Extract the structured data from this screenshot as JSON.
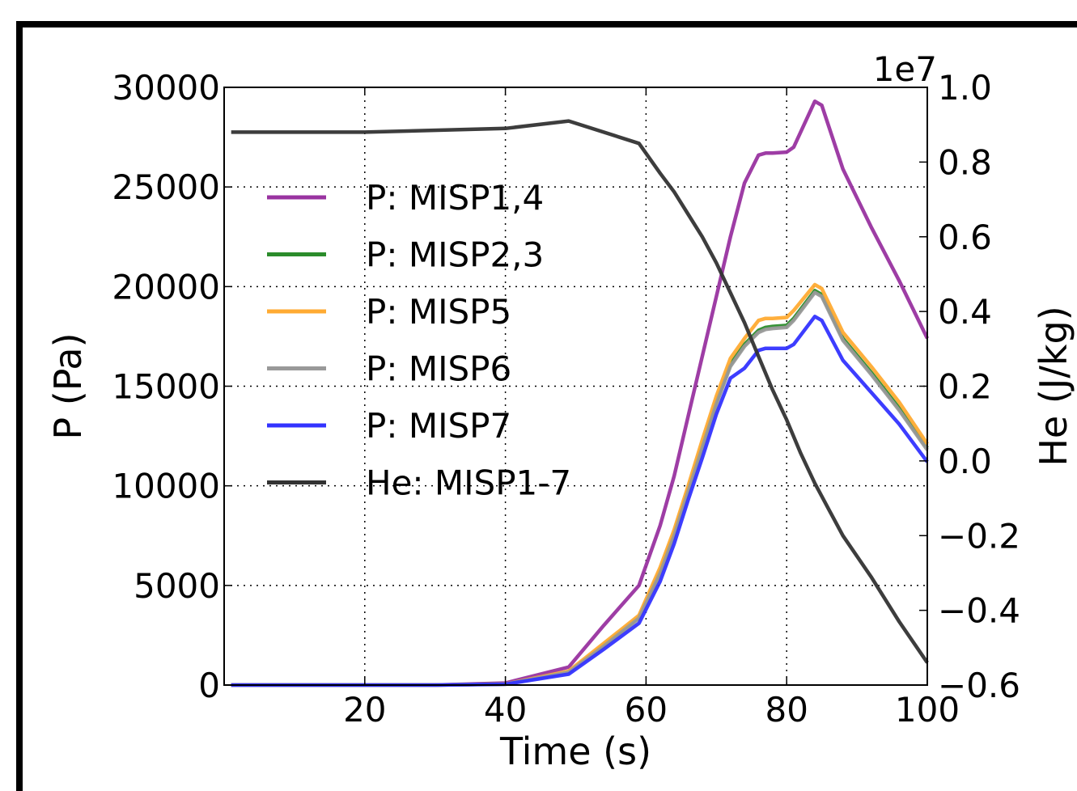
{
  "chart_data": {
    "type": "line",
    "xlabel": "Time (s)",
    "ylabel": "P (Pa)",
    "y2label": "He (J/kg)",
    "y2_offset_label": "1e7",
    "xlim": [
      0,
      100
    ],
    "ylim": [
      0,
      30000
    ],
    "y2lim": [
      -0.6,
      1.0
    ],
    "y2_scale_note": "right axis values shown ×1e7",
    "xticks": [
      "20",
      "40",
      "60",
      "80",
      "100"
    ],
    "yticks": [
      "0",
      "5000",
      "10000",
      "15000",
      "20000",
      "25000",
      "30000"
    ],
    "y2ticks": [
      "−0.6",
      "−0.4",
      "−0.2",
      "0.0",
      "0.2",
      "0.4",
      "0.6",
      "0.8",
      "1.0"
    ],
    "grid": true,
    "legend_position": "upper-left",
    "series": [
      {
        "name": "P: MISP1,4",
        "axis": "left",
        "color": "#9933a0",
        "x": [
          1,
          20,
          30,
          40,
          49,
          54,
          59,
          62,
          64,
          66,
          68,
          70,
          72,
          74,
          76,
          77,
          78,
          80,
          81,
          84,
          85,
          88,
          92,
          96,
          100
        ],
        "y": [
          0,
          0,
          0,
          100,
          900,
          3000,
          5000,
          8000,
          10500,
          13500,
          16500,
          19500,
          22500,
          25200,
          26600,
          26700,
          26700,
          26750,
          27000,
          29300,
          29100,
          25900,
          23000,
          20300,
          17400
        ]
      },
      {
        "name": "P: MISP2,3",
        "axis": "left",
        "color": "#2b8c2b",
        "x": [
          1,
          20,
          30,
          40,
          49,
          54,
          59,
          62,
          64,
          66,
          68,
          70,
          72,
          74,
          76,
          77,
          78,
          80,
          81,
          84,
          85,
          88,
          92,
          96,
          100
        ],
        "y": [
          0,
          0,
          0,
          50,
          650,
          2000,
          3400,
          5700,
          7600,
          9800,
          12000,
          14200,
          16100,
          17100,
          17800,
          17950,
          18000,
          18050,
          18400,
          19800,
          19600,
          17400,
          15700,
          13900,
          11900
        ]
      },
      {
        "name": "P: MISP5",
        "axis": "left",
        "color": "#ffab33",
        "x": [
          1,
          20,
          30,
          40,
          49,
          54,
          59,
          62,
          64,
          66,
          68,
          70,
          72,
          74,
          76,
          77,
          78,
          80,
          81,
          84,
          85,
          88,
          92,
          96,
          100
        ],
        "y": [
          0,
          0,
          0,
          50,
          700,
          2100,
          3500,
          5900,
          7800,
          10000,
          12300,
          14500,
          16400,
          17400,
          18300,
          18400,
          18400,
          18450,
          18800,
          20100,
          19900,
          17700,
          16000,
          14200,
          12100
        ]
      },
      {
        "name": "P: MISP6",
        "axis": "left",
        "color": "#999999",
        "x": [
          1,
          20,
          30,
          40,
          49,
          54,
          59,
          62,
          64,
          66,
          68,
          70,
          72,
          74,
          76,
          77,
          78,
          80,
          81,
          84,
          85,
          88,
          92,
          96,
          100
        ],
        "y": [
          0,
          0,
          0,
          50,
          640,
          1950,
          3350,
          5600,
          7500,
          9700,
          11900,
          14100,
          16000,
          17000,
          17700,
          17850,
          17900,
          17950,
          18300,
          19700,
          19500,
          17300,
          15600,
          13800,
          11800
        ]
      },
      {
        "name": "P: MISP7",
        "axis": "left",
        "color": "#3333ff",
        "x": [
          1,
          20,
          30,
          40,
          49,
          54,
          59,
          62,
          64,
          66,
          68,
          70,
          72,
          74,
          76,
          77,
          78,
          80,
          81,
          84,
          85,
          88,
          92,
          96,
          100
        ],
        "y": [
          0,
          0,
          0,
          40,
          550,
          1800,
          3100,
          5200,
          7100,
          9300,
          11400,
          13600,
          15400,
          15900,
          16800,
          16900,
          16900,
          16900,
          17100,
          18500,
          18300,
          16300,
          14700,
          13100,
          11200
        ]
      },
      {
        "name": "He: MISP1-7",
        "axis": "right",
        "color": "#333333",
        "x": [
          1,
          20,
          40,
          49,
          59,
          62,
          64,
          66,
          68,
          70,
          72,
          74,
          76,
          78,
          80,
          82,
          84,
          86,
          88,
          92,
          96,
          100
        ],
        "y": [
          0.88,
          0.88,
          0.89,
          0.91,
          0.85,
          0.77,
          0.72,
          0.66,
          0.6,
          0.53,
          0.45,
          0.37,
          0.28,
          0.19,
          0.11,
          0.02,
          -0.06,
          -0.13,
          -0.2,
          -0.31,
          -0.43,
          -0.54
        ]
      }
    ]
  }
}
